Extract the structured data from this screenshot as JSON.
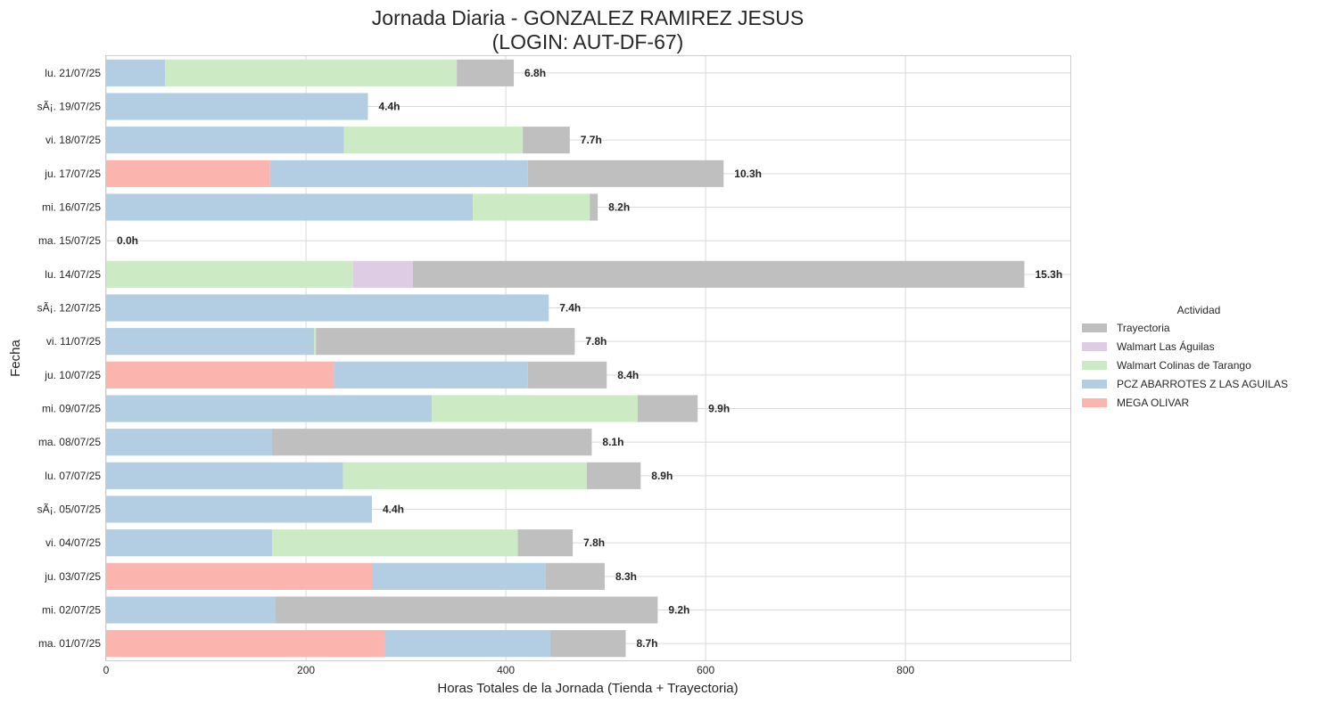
{
  "chart_data": {
    "type": "bar",
    "orientation": "horizontal",
    "stacked": true,
    "title": "Jornada Diaria - GONZALEZ RAMIREZ JESUS",
    "subtitle": "(LOGIN: AUT-DF-67)",
    "xlabel": "Horas Totales de la Jornada (Tienda + Trayectoria)",
    "ylabel": "Fecha",
    "xlim": [
      0,
      965
    ],
    "xticks": [
      "0",
      "200",
      "400",
      "600",
      "800"
    ],
    "xtick_values": [
      0,
      200,
      400,
      600,
      800
    ],
    "grid": true,
    "legend_title": "Actividad",
    "legend_position": "right",
    "categories": [
      "lu. 21/07/25",
      "sÃ¡. 19/07/25",
      "vi. 18/07/25",
      "ju. 17/07/25",
      "mi. 16/07/25",
      "ma. 15/07/25",
      "lu. 14/07/25",
      "sÃ¡. 12/07/25",
      "vi. 11/07/25",
      "ju. 10/07/25",
      "mi. 09/07/25",
      "ma. 08/07/25",
      "lu. 07/07/25",
      "sÃ¡. 05/07/25",
      "vi. 04/07/25",
      "ju. 03/07/25",
      "mi. 02/07/25",
      "ma. 01/07/25"
    ],
    "series": [
      {
        "name": "MEGA OLIVAR",
        "color": "#fbb4ae",
        "values": [
          0,
          0,
          0,
          164,
          0,
          0,
          0,
          0,
          0,
          228,
          0,
          0,
          0,
          0,
          0,
          266,
          0,
          279
        ]
      },
      {
        "name": "PCZ ABARROTES Z LAS AGUILAS",
        "color": "#b3cde3",
        "values": [
          59,
          262,
          238,
          258,
          367,
          0,
          0,
          443,
          208,
          194,
          326,
          166,
          237,
          266,
          166,
          174,
          169,
          166
        ]
      },
      {
        "name": "Walmart Colinas de Tarango",
        "color": "#ccebc5",
        "values": [
          292,
          0,
          179,
          0,
          117,
          0,
          247,
          0,
          2,
          0,
          206,
          0,
          244,
          0,
          246,
          0,
          0,
          0
        ]
      },
      {
        "name": "Walmart Las Águilas",
        "color": "#decbe4",
        "values": [
          0,
          0,
          0,
          0,
          0,
          0,
          60,
          0,
          0,
          0,
          0,
          0,
          0,
          0,
          0,
          0,
          0,
          0
        ]
      },
      {
        "name": "Trayectoria",
        "color": "#bfbfbf",
        "values": [
          57,
          0,
          47,
          196,
          8,
          0,
          612,
          0,
          259,
          79,
          60,
          320,
          54,
          0,
          55,
          59,
          383,
          75
        ]
      }
    ],
    "data_labels": [
      "6.8h",
      "4.4h",
      "7.7h",
      "10.3h",
      "8.2h",
      "0.0h",
      "15.3h",
      "7.4h",
      "7.8h",
      "8.4h",
      "9.9h",
      "8.1h",
      "8.9h",
      "4.4h",
      "7.8h",
      "8.3h",
      "9.2h",
      "8.7h"
    ],
    "legend_order": [
      "Trayectoria",
      "Walmart Las Águilas",
      "Walmart Colinas de Tarango",
      "PCZ ABARROTES Z LAS AGUILAS",
      "MEGA OLIVAR"
    ]
  }
}
